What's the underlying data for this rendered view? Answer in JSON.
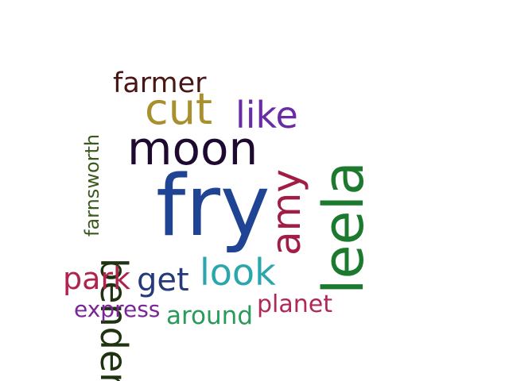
{
  "words": [
    {
      "id": "fry",
      "text": "fry",
      "color": "#1f4494"
    },
    {
      "id": "leela",
      "text": "leela",
      "color": "#1c7a2e"
    },
    {
      "id": "moon",
      "text": "moon",
      "color": "#1e0a30"
    },
    {
      "id": "bender",
      "text": "bender",
      "color": "#1f3310"
    },
    {
      "id": "amy",
      "text": "amy",
      "color": "#a01e46"
    },
    {
      "id": "cut",
      "text": "cut",
      "color": "#a8902e"
    },
    {
      "id": "like",
      "text": "like",
      "color": "#6a2ca6"
    },
    {
      "id": "look",
      "text": "look",
      "color": "#2aa7ad"
    },
    {
      "id": "farmer",
      "text": "farmer",
      "color": "#4a1515"
    },
    {
      "id": "park",
      "text": "park",
      "color": "#b0234a"
    },
    {
      "id": "get",
      "text": "get",
      "color": "#243a7a"
    },
    {
      "id": "farnsworth",
      "text": "farnsworth",
      "color": "#3a5a1e"
    },
    {
      "id": "planet",
      "text": "planet",
      "color": "#b0285a"
    },
    {
      "id": "express",
      "text": "express",
      "color": "#7a2696"
    },
    {
      "id": "around",
      "text": "around",
      "color": "#2a9a5a"
    }
  ]
}
